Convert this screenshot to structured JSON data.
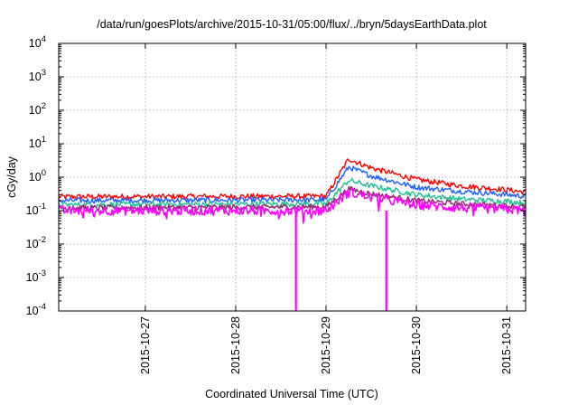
{
  "chart_data": {
    "type": "line",
    "title": "/data/run/goesPlots/archive/2015-10-31/05:00/flux/../bryn/5daysEarthData.plot",
    "xlabel": "Coordinated Universal Time (UTC)",
    "ylabel": "cGy/day",
    "yscale": "log",
    "ylim": [
      0.0001,
      10000
    ],
    "xlim": [
      "2015-10-26T01:00",
      "2015-10-31T05:00"
    ],
    "grid": true,
    "x_ticks": [
      "2015-10-27",
      "2015-10-28",
      "2015-10-29",
      "2015-10-30",
      "2015-10-31"
    ],
    "y_ticks": [
      {
        "value": 0.0001,
        "base": "10",
        "exp": "-4"
      },
      {
        "value": 0.001,
        "base": "10",
        "exp": "-3"
      },
      {
        "value": 0.01,
        "base": "10",
        "exp": "-2"
      },
      {
        "value": 0.1,
        "base": "10",
        "exp": "-1"
      },
      {
        "value": 1,
        "base": "10",
        "exp": "0"
      },
      {
        "value": 10,
        "base": "10",
        "exp": "1"
      },
      {
        "value": 100,
        "base": "10",
        "exp": "2"
      },
      {
        "value": 1000,
        "base": "10",
        "exp": "3"
      },
      {
        "value": 10000,
        "base": "10",
        "exp": "4"
      }
    ],
    "x": [
      "2015-10-26T01:00",
      "2015-10-29T00:00",
      "2015-10-29T06:00",
      "2015-10-29T12:00",
      "2015-10-30T00:00",
      "2015-10-30T12:00",
      "2015-10-31T00:00",
      "2015-10-31T05:00"
    ],
    "series": [
      {
        "color": "#ff0000",
        "values": [
          0.26,
          0.27,
          3.5,
          1.9,
          0.85,
          0.55,
          0.42,
          0.36
        ]
      },
      {
        "color": "#1f5fff",
        "values": [
          0.2,
          0.21,
          2.0,
          1.1,
          0.5,
          0.38,
          0.3,
          0.27
        ]
      },
      {
        "color": "#1fc08f",
        "values": [
          0.15,
          0.16,
          0.8,
          0.55,
          0.3,
          0.22,
          0.19,
          0.17
        ]
      },
      {
        "color": "#8c2a6c",
        "values": [
          0.12,
          0.13,
          0.45,
          0.32,
          0.2,
          0.16,
          0.14,
          0.13
        ]
      },
      {
        "color": "#ff00ff",
        "values": [
          0.1,
          0.1,
          0.35,
          0.25,
          0.15,
          0.12,
          0.11,
          0.1
        ]
      }
    ],
    "dropouts": [
      {
        "series": 4,
        "time": "2015-10-28T16:00"
      },
      {
        "series": 4,
        "time": "2015-10-29T16:00"
      }
    ]
  }
}
